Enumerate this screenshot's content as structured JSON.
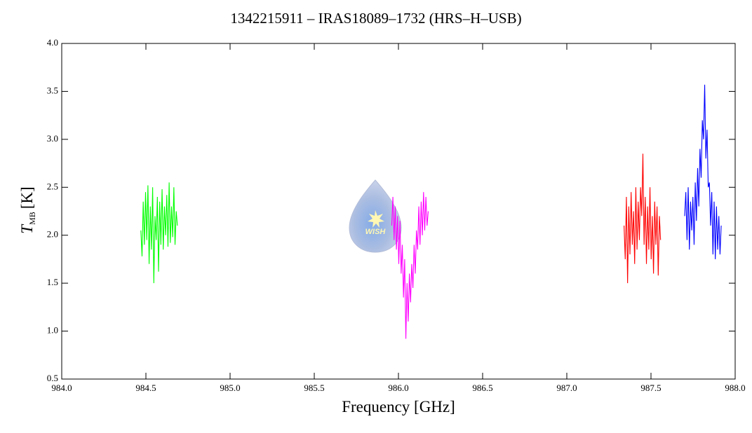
{
  "chart_data": {
    "type": "line",
    "title": "1342215911 – IRAS18089–1732 (HRS–H–USB)",
    "x_label": "Frequency [GHz]",
    "y_label": {
      "symbol": "T",
      "subscript": "MB",
      "unit": "[K]"
    },
    "logo_text": "WISH",
    "xlim": [
      984,
      988
    ],
    "ylim": [
      0.5,
      4
    ],
    "xticks": [
      {
        "value": 984,
        "label": "984.0"
      },
      984.5,
      {
        "value": 985,
        "label": "985.0"
      },
      985.5,
      {
        "value": 986,
        "label": "986.0"
      },
      986.5,
      {
        "value": 987,
        "label": "987.0"
      },
      987.5,
      {
        "value": 988,
        "label": "988.0"
      }
    ],
    "yticks": [
      0.5,
      {
        "value": 1,
        "label": "1.0"
      },
      1.5,
      {
        "value": 2,
        "label": "2.0"
      },
      2.5,
      {
        "value": 3,
        "label": "3.0"
      },
      3.5,
      {
        "value": 4,
        "label": "4.0"
      }
    ],
    "series": [
      {
        "color": "#00ff00",
        "x": [
          984.47,
          984.477,
          984.484,
          984.491,
          984.498,
          984.505,
          984.512,
          984.519,
          984.526,
          984.533,
          984.54,
          984.547,
          984.554,
          984.561,
          984.568,
          984.575,
          984.582,
          984.589,
          984.596,
          984.603,
          984.61,
          984.617,
          984.624,
          984.631,
          984.638,
          984.645,
          984.652,
          984.659,
          984.666,
          984.673,
          984.68,
          984.687
        ],
        "values": [
          2.05,
          1.78,
          2.35,
          1.9,
          2.45,
          1.95,
          2.52,
          1.7,
          2.3,
          1.85,
          2.5,
          1.5,
          2.2,
          1.95,
          2.4,
          1.62,
          2.35,
          1.9,
          2.48,
          1.85,
          2.3,
          2.0,
          2.42,
          1.88,
          2.55,
          1.92,
          2.3,
          1.98,
          2.5,
          1.9,
          2.25,
          2.1
        ]
      },
      {
        "color": "#ff00ff",
        "x": [
          985.96,
          985.967,
          985.974,
          985.981,
          985.988,
          985.995,
          986.002,
          986.009,
          986.016,
          986.023,
          986.03,
          986.037,
          986.044,
          986.051,
          986.058,
          986.065,
          986.072,
          986.079,
          986.086,
          986.093,
          986.1,
          986.107,
          986.114,
          986.121,
          986.128,
          986.135,
          986.142,
          986.149,
          986.156,
          986.163,
          986.17,
          986.177
        ],
        "values": [
          2.1,
          2.4,
          1.95,
          2.3,
          1.85,
          2.2,
          1.7,
          2.15,
          1.6,
          1.9,
          1.35,
          1.75,
          0.92,
          1.5,
          1.1,
          1.6,
          1.3,
          1.7,
          1.45,
          1.9,
          1.6,
          2.05,
          1.85,
          2.3,
          1.9,
          2.35,
          2.0,
          2.45,
          2.05,
          2.4,
          2.1,
          2.25
        ]
      },
      {
        "color": "#ff0000",
        "x": [
          987.34,
          987.347,
          987.354,
          987.361,
          987.368,
          987.375,
          987.382,
          987.389,
          987.396,
          987.403,
          987.41,
          987.417,
          987.424,
          987.431,
          987.438,
          987.445,
          987.452,
          987.459,
          987.466,
          987.473,
          987.48,
          987.487,
          987.494,
          987.501,
          987.508,
          987.515,
          987.522,
          987.529,
          987.536,
          987.543,
          987.55,
          987.557
        ],
        "values": [
          2.1,
          1.75,
          2.4,
          1.5,
          2.3,
          1.8,
          2.45,
          1.9,
          2.25,
          1.7,
          2.5,
          1.85,
          2.35,
          1.95,
          2.5,
          2.2,
          2.85,
          1.9,
          2.4,
          1.7,
          2.3,
          1.85,
          2.5,
          1.75,
          2.2,
          1.6,
          2.35,
          1.9,
          2.3,
          1.58,
          2.2,
          1.95
        ]
      },
      {
        "color": "#0000ff",
        "x": [
          987.7,
          987.707,
          987.714,
          987.721,
          987.728,
          987.735,
          987.742,
          987.749,
          987.756,
          987.763,
          987.77,
          987.777,
          987.784,
          987.791,
          987.798,
          987.805,
          987.812,
          987.819,
          987.826,
          987.833,
          987.84,
          987.847,
          987.854,
          987.861,
          987.868,
          987.875,
          987.882,
          987.889,
          987.896,
          987.903,
          987.91,
          987.917
        ],
        "values": [
          2.2,
          2.45,
          1.95,
          2.5,
          1.85,
          2.35,
          2.05,
          2.4,
          1.9,
          2.55,
          2.15,
          2.7,
          2.3,
          2.9,
          2.6,
          3.2,
          3.0,
          3.57,
          2.8,
          3.1,
          2.5,
          2.55,
          2.1,
          2.45,
          1.8,
          2.35,
          1.75,
          2.3,
          1.85,
          2.2,
          1.8,
          2.1
        ]
      }
    ]
  }
}
